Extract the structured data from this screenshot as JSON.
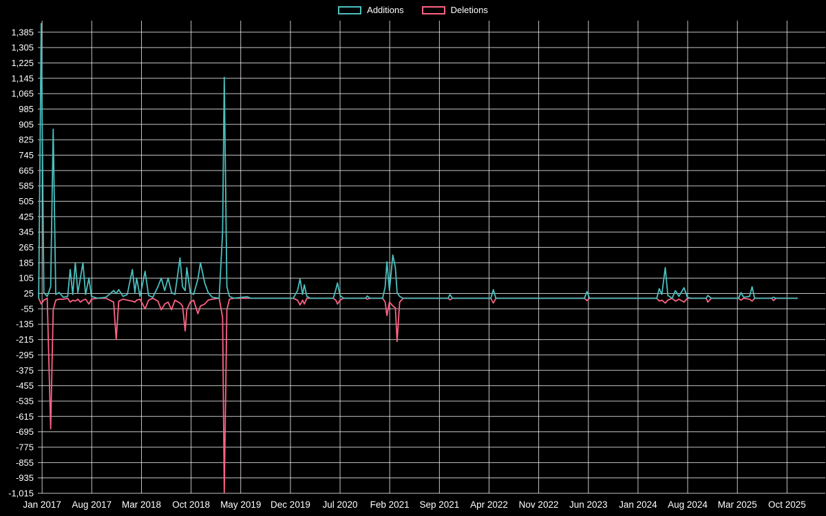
{
  "page": {
    "background_color": "#000000",
    "text_color": "#ffffff",
    "grid_color": "#e8e8e8"
  },
  "chart_data": {
    "type": "line",
    "title": "",
    "xlabel": "",
    "ylabel": "",
    "legend_position": "top",
    "grid": true,
    "xlim": [
      2016.95,
      2026.2
    ],
    "ylim": [
      -1015,
      1445
    ],
    "y_ticks": [
      {
        "value": 1385,
        "label": "1,385"
      },
      {
        "value": 1305,
        "label": "1,305"
      },
      {
        "value": 1225,
        "label": "1,225"
      },
      {
        "value": 1145,
        "label": "1,145"
      },
      {
        "value": 1065,
        "label": "1,065"
      },
      {
        "value": 985,
        "label": "985"
      },
      {
        "value": 905,
        "label": "905"
      },
      {
        "value": 825,
        "label": "825"
      },
      {
        "value": 745,
        "label": "745"
      },
      {
        "value": 665,
        "label": "665"
      },
      {
        "value": 585,
        "label": "585"
      },
      {
        "value": 505,
        "label": "505"
      },
      {
        "value": 425,
        "label": "425"
      },
      {
        "value": 345,
        "label": "345"
      },
      {
        "value": 265,
        "label": "265"
      },
      {
        "value": 185,
        "label": "185"
      },
      {
        "value": 105,
        "label": "105"
      },
      {
        "value": 25,
        "label": "25"
      },
      {
        "value": -55,
        "label": "-55"
      },
      {
        "value": -135,
        "label": "-135"
      },
      {
        "value": -215,
        "label": "-215"
      },
      {
        "value": -295,
        "label": "-295"
      },
      {
        "value": -375,
        "label": "-375"
      },
      {
        "value": -455,
        "label": "-455"
      },
      {
        "value": -535,
        "label": "-535"
      },
      {
        "value": -615,
        "label": "-615"
      },
      {
        "value": -695,
        "label": "-695"
      },
      {
        "value": -775,
        "label": "-775"
      },
      {
        "value": -855,
        "label": "-855"
      },
      {
        "value": -935,
        "label": "-935"
      },
      {
        "value": -1015,
        "label": "-1,015"
      }
    ],
    "x_ticks": [
      {
        "value": 2017.0,
        "label": "Jan 2017"
      },
      {
        "value": 2017.583,
        "label": "Aug 2017"
      },
      {
        "value": 2018.167,
        "label": "Mar 2018"
      },
      {
        "value": 2018.75,
        "label": "Oct 2018"
      },
      {
        "value": 2019.333,
        "label": "May 2019"
      },
      {
        "value": 2019.917,
        "label": "Dec 2019"
      },
      {
        "value": 2020.5,
        "label": "Jul 2020"
      },
      {
        "value": 2021.083,
        "label": "Feb 2021"
      },
      {
        "value": 2021.667,
        "label": "Sep 2021"
      },
      {
        "value": 2022.25,
        "label": "Apr 2022"
      },
      {
        "value": 2022.833,
        "label": "Nov 2022"
      },
      {
        "value": 2023.417,
        "label": "Jun 2023"
      },
      {
        "value": 2024.0,
        "label": "Jan 2024"
      },
      {
        "value": 2024.583,
        "label": "Aug 2024"
      },
      {
        "value": 2025.167,
        "label": "Mar 2025"
      },
      {
        "value": 2025.75,
        "label": "Oct 2025"
      }
    ],
    "x": [
      2016.96,
      2016.99,
      2017.02,
      2017.06,
      2017.1,
      2017.13,
      2017.16,
      2017.2,
      2017.25,
      2017.3,
      2017.33,
      2017.36,
      2017.39,
      2017.42,
      2017.45,
      2017.48,
      2017.51,
      2017.55,
      2017.58,
      2017.65,
      2017.75,
      2017.84,
      2017.87,
      2017.9,
      2017.95,
      2018.0,
      2018.06,
      2018.09,
      2018.11,
      2018.15,
      2018.21,
      2018.25,
      2018.3,
      2018.36,
      2018.4,
      2018.44,
      2018.48,
      2018.52,
      2018.56,
      2018.62,
      2018.65,
      2018.68,
      2018.7,
      2018.74,
      2018.78,
      2018.83,
      2018.86,
      2018.91,
      2018.95,
      2019.0,
      2019.08,
      2019.12,
      2019.14,
      2019.17,
      2019.2,
      2019.25,
      2019.41,
      2019.45,
      2019.95,
      2020.0,
      2020.03,
      2020.06,
      2020.08,
      2020.11,
      2020.15,
      2020.42,
      2020.45,
      2020.47,
      2020.5,
      2020.54,
      2020.8,
      2020.82,
      2020.85,
      2021.0,
      2021.03,
      2021.05,
      2021.08,
      2021.12,
      2021.15,
      2021.17,
      2021.2,
      2021.24,
      2021.77,
      2021.79,
      2021.82,
      2022.27,
      2022.3,
      2022.33,
      2023.37,
      2023.4,
      2023.43,
      2024.22,
      2024.25,
      2024.28,
      2024.32,
      2024.35,
      2024.4,
      2024.44,
      2024.48,
      2024.54,
      2024.58,
      2024.62,
      2024.8,
      2024.82,
      2024.86,
      2025.18,
      2025.21,
      2025.24,
      2025.31,
      2025.34,
      2025.37,
      2025.57,
      2025.59,
      2025.62,
      2025.87
    ],
    "series": [
      {
        "name": "Additions",
        "color": "#4bc0c0",
        "values": [
          0,
          1430,
          30,
          10,
          60,
          880,
          20,
          30,
          5,
          10,
          150,
          20,
          185,
          30,
          105,
          185,
          20,
          105,
          10,
          0,
          5,
          40,
          25,
          45,
          10,
          20,
          150,
          30,
          105,
          10,
          140,
          15,
          5,
          60,
          105,
          40,
          105,
          30,
          20,
          210,
          60,
          40,
          160,
          30,
          20,
          100,
          185,
          80,
          30,
          5,
          0,
          345,
          1150,
          60,
          10,
          0,
          8,
          0,
          0,
          40,
          100,
          20,
          70,
          10,
          0,
          0,
          45,
          80,
          15,
          0,
          0,
          12,
          0,
          0,
          60,
          190,
          40,
          225,
          160,
          30,
          10,
          0,
          0,
          20,
          0,
          0,
          45,
          0,
          0,
          35,
          0,
          0,
          50,
          20,
          160,
          15,
          0,
          40,
          10,
          55,
          5,
          0,
          0,
          15,
          0,
          0,
          30,
          5,
          10,
          60,
          0,
          0,
          5,
          0,
          0
        ]
      },
      {
        "name": "Deletions",
        "color": "#ff6384",
        "values": [
          0,
          -30,
          -10,
          0,
          -680,
          -60,
          -10,
          -5,
          -5,
          0,
          -20,
          -10,
          -15,
          -5,
          -20,
          -10,
          -5,
          -30,
          -5,
          0,
          0,
          -20,
          -215,
          -15,
          -5,
          -10,
          -15,
          -20,
          -10,
          -5,
          -55,
          -10,
          0,
          -15,
          -60,
          -30,
          -20,
          -60,
          -10,
          -25,
          -40,
          -170,
          -60,
          -20,
          -10,
          -80,
          -40,
          -30,
          -10,
          -5,
          0,
          -100,
          -1010,
          -60,
          -5,
          0,
          0,
          0,
          0,
          -10,
          -35,
          -10,
          -30,
          0,
          0,
          0,
          -10,
          -30,
          -10,
          0,
          0,
          -5,
          0,
          0,
          -20,
          -90,
          -20,
          -40,
          -50,
          -225,
          -20,
          0,
          0,
          -8,
          0,
          0,
          -25,
          0,
          0,
          -12,
          0,
          0,
          -15,
          -10,
          -25,
          -10,
          0,
          -15,
          -5,
          -20,
          0,
          0,
          0,
          -20,
          0,
          0,
          -10,
          0,
          -5,
          -15,
          0,
          0,
          -12,
          0,
          0
        ]
      }
    ]
  }
}
